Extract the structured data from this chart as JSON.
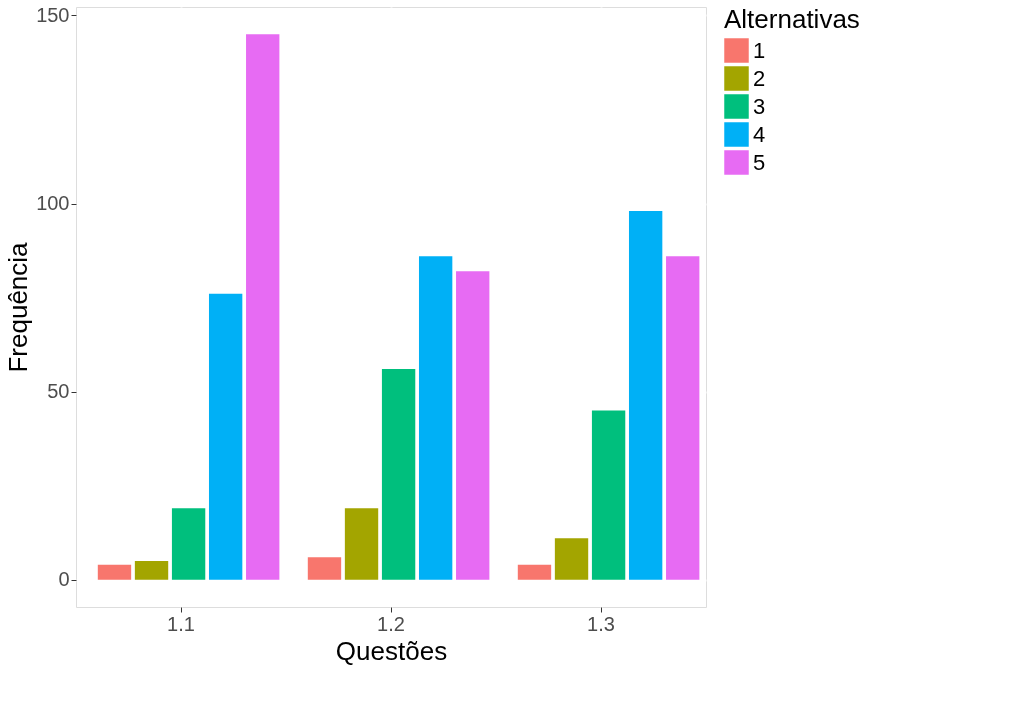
{
  "chart_data": {
    "type": "bar",
    "xlabel": "Questões",
    "ylabel": "Frequência",
    "legend_title": "Alternativas",
    "categories": [
      "1.1",
      "1.2",
      "1.3"
    ],
    "series": [
      {
        "name": "1",
        "color": "#f8766d",
        "values": [
          4,
          6,
          4
        ]
      },
      {
        "name": "2",
        "color": "#a3a500",
        "values": [
          5,
          19,
          11
        ]
      },
      {
        "name": "3",
        "color": "#00bf7d",
        "values": [
          19,
          56,
          45
        ]
      },
      {
        "name": "4",
        "color": "#00b0f6",
        "values": [
          76,
          86,
          98
        ]
      },
      {
        "name": "5",
        "color": "#e76bf3",
        "values": [
          145,
          82,
          86
        ]
      }
    ],
    "ylim": [
      -7.25,
      152.25
    ],
    "yticks": [
      0,
      50,
      100,
      150
    ],
    "grid": true,
    "legend": "right"
  }
}
